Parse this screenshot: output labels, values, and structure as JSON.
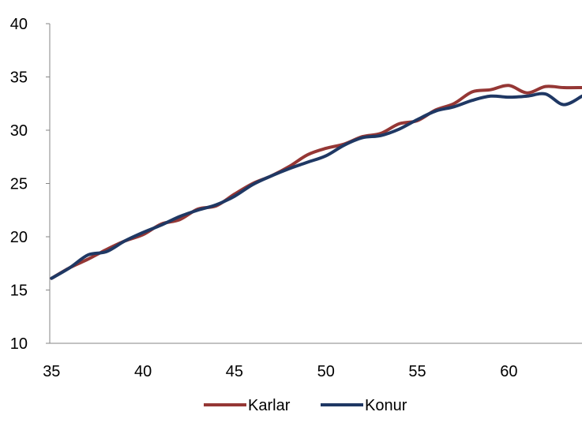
{
  "chart_data": {
    "type": "line",
    "title": "",
    "xlabel": "",
    "ylabel": "",
    "xlim": [
      34.9,
      64
    ],
    "ylim": [
      10,
      40
    ],
    "x_ticks": [
      35,
      40,
      45,
      50,
      55,
      60
    ],
    "y_ticks": [
      10,
      15,
      20,
      25,
      30,
      35,
      40
    ],
    "grid": false,
    "legend_position": "bottom",
    "x": [
      35,
      36,
      37,
      38,
      39,
      40,
      41,
      42,
      43,
      44,
      45,
      46,
      47,
      48,
      49,
      50,
      51,
      52,
      53,
      54,
      55,
      56,
      57,
      58,
      59,
      60,
      61,
      62,
      63,
      64
    ],
    "series": [
      {
        "name": "Karlar",
        "color": "#953735",
        "values": [
          16.1,
          17.1,
          17.9,
          18.8,
          19.6,
          20.2,
          21.2,
          21.6,
          22.6,
          22.9,
          24.0,
          25.0,
          25.7,
          26.6,
          27.7,
          28.3,
          28.7,
          29.4,
          29.7,
          30.6,
          30.9,
          31.9,
          32.5,
          33.6,
          33.8,
          34.2,
          33.5,
          34.1,
          34.0,
          34.0
        ]
      },
      {
        "name": "Konur",
        "color": "#1f3864",
        "values": [
          16.1,
          17.1,
          18.3,
          18.6,
          19.6,
          20.4,
          21.1,
          21.9,
          22.5,
          23.0,
          23.8,
          24.9,
          25.7,
          26.4,
          27.0,
          27.6,
          28.6,
          29.3,
          29.5,
          30.1,
          31.0,
          31.8,
          32.2,
          32.8,
          33.2,
          33.1,
          33.2,
          33.4,
          32.4,
          33.2
        ]
      }
    ]
  }
}
